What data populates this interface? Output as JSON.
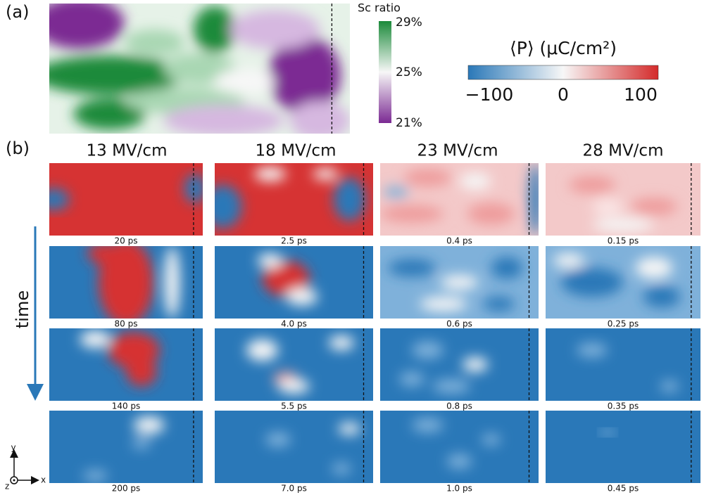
{
  "panel_a": {
    "label": "(a)",
    "colorbar": {
      "title": "Sc ratio",
      "ticks": [
        "29%",
        "25%",
        "21%"
      ]
    }
  },
  "colorbar_p": {
    "title": "⟨P⟩ (μC/cm²)",
    "ticks": [
      "−100",
      "0",
      "100"
    ]
  },
  "panel_b": {
    "label": "(b)",
    "columns": [
      "13 MV/cm",
      "18 MV/cm",
      "23 MV/cm",
      "28 MV/cm"
    ],
    "times": [
      [
        "20 ps",
        "80 ps",
        "140 ps",
        "200 ps"
      ],
      [
        "2.5 ps",
        "4.0 ps",
        "5.5 ps",
        "7.0 ps"
      ],
      [
        "0.4 ps",
        "0.6 ps",
        "0.8 ps",
        "1.0 ps"
      ],
      [
        "0.15 ps",
        "0.25 ps",
        "0.35 ps",
        "0.45 ps"
      ]
    ],
    "time_axis": "time",
    "axes": [
      "y",
      "x",
      "z"
    ]
  }
}
